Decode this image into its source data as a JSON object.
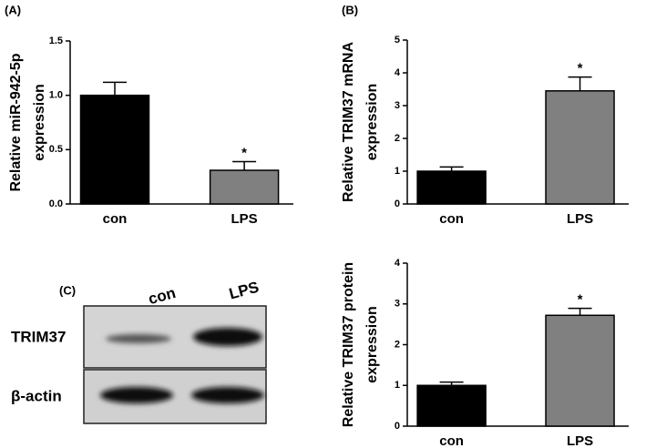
{
  "chart_data": [
    {
      "type": "bar",
      "panel_label": "(A)",
      "ylabel": [
        "Relative miR-942-5p",
        "expression"
      ],
      "categories": [
        "con",
        "LPS"
      ],
      "values": [
        1.0,
        0.31
      ],
      "errors": [
        0.12,
        0.08
      ],
      "colors": [
        "#000000",
        "#808080"
      ],
      "significance_labels": [
        null,
        "*"
      ],
      "ylim": [
        0,
        1.5
      ],
      "yticks": [
        {
          "value": 0,
          "label": "0.0"
        },
        {
          "value": 0.5,
          "label": "0.5"
        },
        {
          "value": 1.0,
          "label": "1.0"
        },
        {
          "value": 1.5,
          "label": "1.5"
        }
      ]
    },
    {
      "type": "bar",
      "panel_label": "(B)",
      "ylabel": [
        "Relative TRIM37 mRNA",
        "expression"
      ],
      "categories": [
        "con",
        "LPS"
      ],
      "values": [
        1.0,
        3.45
      ],
      "errors": [
        0.13,
        0.42
      ],
      "colors": [
        "#000000",
        "#808080"
      ],
      "significance_labels": [
        null,
        "*"
      ],
      "ylim": [
        0,
        5
      ],
      "yticks": [
        0,
        1,
        2,
        3,
        4,
        5
      ]
    },
    {
      "type": "bar",
      "ylabel": [
        "Relative TRIM37 protein",
        "expression"
      ],
      "categories": [
        "con",
        "LPS"
      ],
      "values": [
        1.0,
        2.72
      ],
      "errors": [
        0.08,
        0.17
      ],
      "colors": [
        "#000000",
        "#808080"
      ],
      "significance_labels": [
        null,
        "*"
      ],
      "ylim": [
        0,
        4
      ],
      "yticks": [
        0,
        1,
        2,
        3,
        4
      ]
    }
  ],
  "blot": {
    "panel_label": "(C)",
    "lanes": [
      "con",
      "LPS"
    ],
    "rows": [
      "TRIM37",
      "β-actin"
    ]
  }
}
